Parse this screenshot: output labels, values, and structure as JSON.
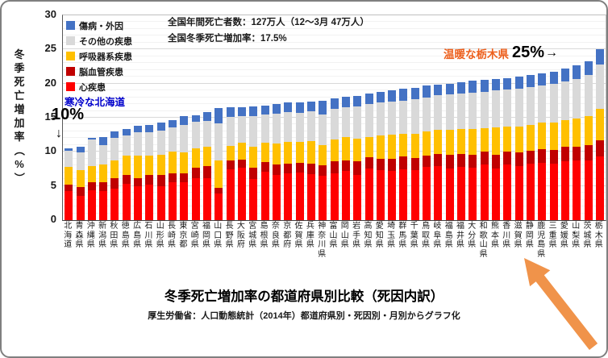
{
  "colors": {
    "frame_border": "#7f7f7f",
    "cold_text": "#0000cc",
    "warm_text": "#ed5f1c",
    "big_arrow": "#f0934a",
    "grid_minor": "#f2f2f2",
    "grid_major": "#d9d9d9"
  },
  "chart_data": {
    "type": "bar",
    "stacked": true,
    "title": "冬季死亡増加率の都道府県別比較（死因内訳）",
    "source": "厚生労働省：人口動態統計（2014年）都道府県別・死因別・月別からグラフ化",
    "y_axis_label": "冬季死亡増加率（%）",
    "ylim": [
      0,
      30
    ],
    "y_ticks": [
      0,
      5,
      10,
      15,
      20,
      25,
      30
    ],
    "grid": "horizontal, minor every 1, major every 5",
    "legend_position": "top-left inside plot, vertical",
    "legend": [
      {
        "label": "傷病・外因",
        "color": "#4472C4"
      },
      {
        "label": "その他の疾患",
        "color": "#D9D9D9"
      },
      {
        "label": "呼吸器系疾患",
        "color": "#FFC000"
      },
      {
        "label": "脳血管疾患",
        "color": "#C00000"
      },
      {
        "label": "心疾患",
        "color": "#FF0000"
      }
    ],
    "categories": [
      "北海道",
      "青森県",
      "沖縄県",
      "新潟県",
      "秋田県",
      "徳島県",
      "広島県",
      "石川県",
      "山形県",
      "長崎県",
      "東京都",
      "宮崎県",
      "福岡県",
      "山口県",
      "長野県",
      "大阪府",
      "宮城県",
      "島根県",
      "奈良県",
      "京都府",
      "佐賀県",
      "兵庫県",
      "神奈川県",
      "富山県",
      "岡山県",
      "岩手県",
      "高知県",
      "愛知県",
      "埼玉県",
      "群馬県",
      "千葉県",
      "鳥取県",
      "岐阜県",
      "福島県",
      "福井県",
      "大分県",
      "和歌山県",
      "熊本県",
      "香川県",
      "滋賀県",
      "静岡県",
      "鹿児島県",
      "三重県",
      "愛媛県",
      "山梨県",
      "茨城県",
      "栃木県"
    ],
    "series_note": "stacked bottom-to-top in this order; values are winter mortality increase % (estimated from pixels)",
    "series": [
      {
        "name": "心疾患",
        "color": "#FF0000",
        "values": [
          4.2,
          3.6,
          4.4,
          4.3,
          4.6,
          5.3,
          5.0,
          5.2,
          5.0,
          5.6,
          5.5,
          6.2,
          6.2,
          3.9,
          7.5,
          7.7,
          6.0,
          7.1,
          6.6,
          6.8,
          7.0,
          6.7,
          6.5,
          6.9,
          7.2,
          6.6,
          7.6,
          7.3,
          7.2,
          7.5,
          7.3,
          7.8,
          7.9,
          7.6,
          7.8,
          7.7,
          8.2,
          7.6,
          8.1,
          7.9,
          8.3,
          8.4,
          8.3,
          8.6,
          8.7,
          8.8,
          9.3
        ]
      },
      {
        "name": "脳血管疾患",
        "color": "#C00000",
        "values": [
          1.0,
          1.2,
          1.1,
          1.3,
          1.5,
          1.3,
          1.2,
          1.4,
          1.6,
          1.3,
          1.4,
          1.5,
          1.7,
          0.8,
          1.2,
          1.2,
          1.7,
          1.4,
          1.6,
          1.5,
          1.4,
          1.6,
          1.5,
          1.7,
          1.6,
          2.0,
          1.6,
          1.7,
          1.8,
          1.8,
          1.8,
          1.7,
          1.8,
          2.0,
          1.9,
          1.9,
          1.8,
          2.0,
          1.9,
          2.0,
          1.9,
          2.0,
          2.0,
          2.1,
          2.1,
          2.2,
          2.4
        ]
      },
      {
        "name": "呼吸器系疾患",
        "color": "#FFC000",
        "values": [
          2.6,
          2.5,
          2.4,
          2.6,
          2.7,
          2.8,
          3.2,
          2.9,
          3.0,
          3.1,
          3.0,
          2.8,
          2.9,
          4.0,
          2.2,
          2.5,
          3.1,
          2.9,
          3.0,
          3.2,
          3.1,
          3.3,
          3.0,
          3.2,
          3.4,
          3.3,
          3.0,
          3.4,
          3.5,
          3.4,
          3.6,
          3.5,
          3.5,
          3.6,
          3.6,
          3.8,
          3.5,
          4.0,
          3.7,
          3.8,
          3.8,
          3.9,
          4.0,
          3.9,
          4.1,
          4.3,
          4.6
        ]
      },
      {
        "name": "その他の疾患",
        "color": "#D9D9D9",
        "values": [
          2.4,
          2.6,
          3.9,
          2.8,
          3.2,
          3.0,
          3.5,
          3.4,
          3.5,
          3.6,
          4.0,
          3.9,
          3.7,
          5.5,
          4.2,
          3.9,
          4.4,
          4.1,
          4.4,
          4.3,
          4.2,
          4.4,
          4.5,
          4.5,
          4.4,
          4.8,
          4.8,
          4.8,
          4.9,
          4.8,
          5.0,
          5.0,
          5.1,
          5.2,
          5.2,
          5.3,
          5.3,
          5.4,
          5.4,
          5.5,
          5.5,
          5.4,
          5.7,
          5.7,
          5.8,
          6.0,
          6.5
        ]
      },
      {
        "name": "傷病・外因",
        "color": "#4472C4",
        "values": [
          0.3,
          0.9,
          0.2,
          1.2,
          1.0,
          1.0,
          0.9,
          1.1,
          1.2,
          1.0,
          1.3,
          1.0,
          1.3,
          2.2,
          1.4,
          1.3,
          1.5,
          1.3,
          1.4,
          1.4,
          1.5,
          1.4,
          2.0,
          1.5,
          1.5,
          1.5,
          1.5,
          1.6,
          1.6,
          1.7,
          1.7,
          1.7,
          1.6,
          1.6,
          1.7,
          1.7,
          1.7,
          1.7,
          1.7,
          1.8,
          1.8,
          1.8,
          1.8,
          1.9,
          2.0,
          2.0,
          2.2
        ]
      }
    ],
    "annotations": {
      "national_deaths": "全国年間死亡者数：127万人（12～3月 47万人）",
      "national_rate": "全国冬季死亡増加率：17.5%",
      "cold_label": "寒冷な北海道",
      "cold_value": "10%",
      "cold_arrow": "↓",
      "warm_label": "温暖な栃木県",
      "warm_value": "25%",
      "warm_arrow": "→"
    }
  }
}
